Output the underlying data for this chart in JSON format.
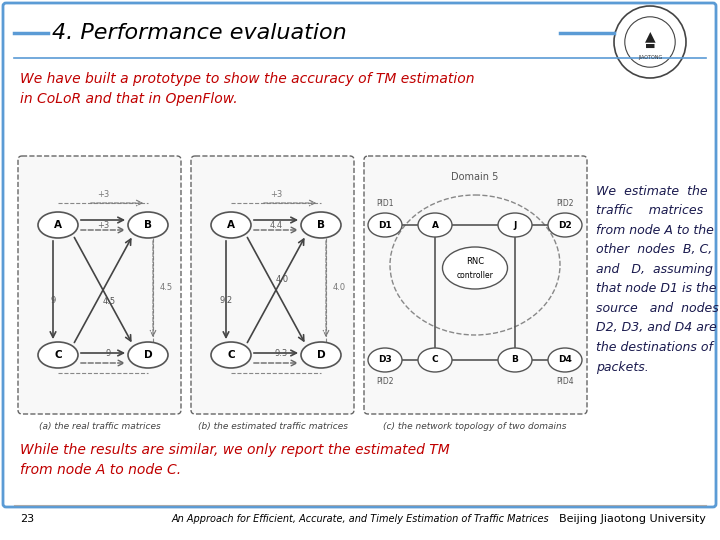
{
  "title": "4. Performance evaluation",
  "title_color": "#000000",
  "title_fontsize": 16,
  "bg_color": "#ffffff",
  "border_color": "#5b9bd5",
  "slide_number": "23",
  "footer_center": "An Approach for Efficient, Accurate, and Timely Estimation of Traffic Matrices",
  "footer_right": "Beijing Jiaotong University",
  "red_text_1": "We have built a prototype to show the accuracy of TM estimation\nin CoLoR and that in OpenFlow.",
  "red_text_2": "While the results are similar, we only report the estimated TM\nfrom node A to node C.",
  "red_color": "#c00000",
  "black_text": "We  estimate  the\ntraffic    matrices\nfrom node A to the\nother  nodes  B, C,\nand   D,  assuming\nthat node D1 is the\nsource   and  nodes\nD2, D3, and D4 are\nthe destinations of\npackets.",
  "caption_a": "(a) the real traffic matrices",
  "caption_b": "(b) the estimated traffic matrices",
  "caption_c": "(c) the network topology of two domains"
}
